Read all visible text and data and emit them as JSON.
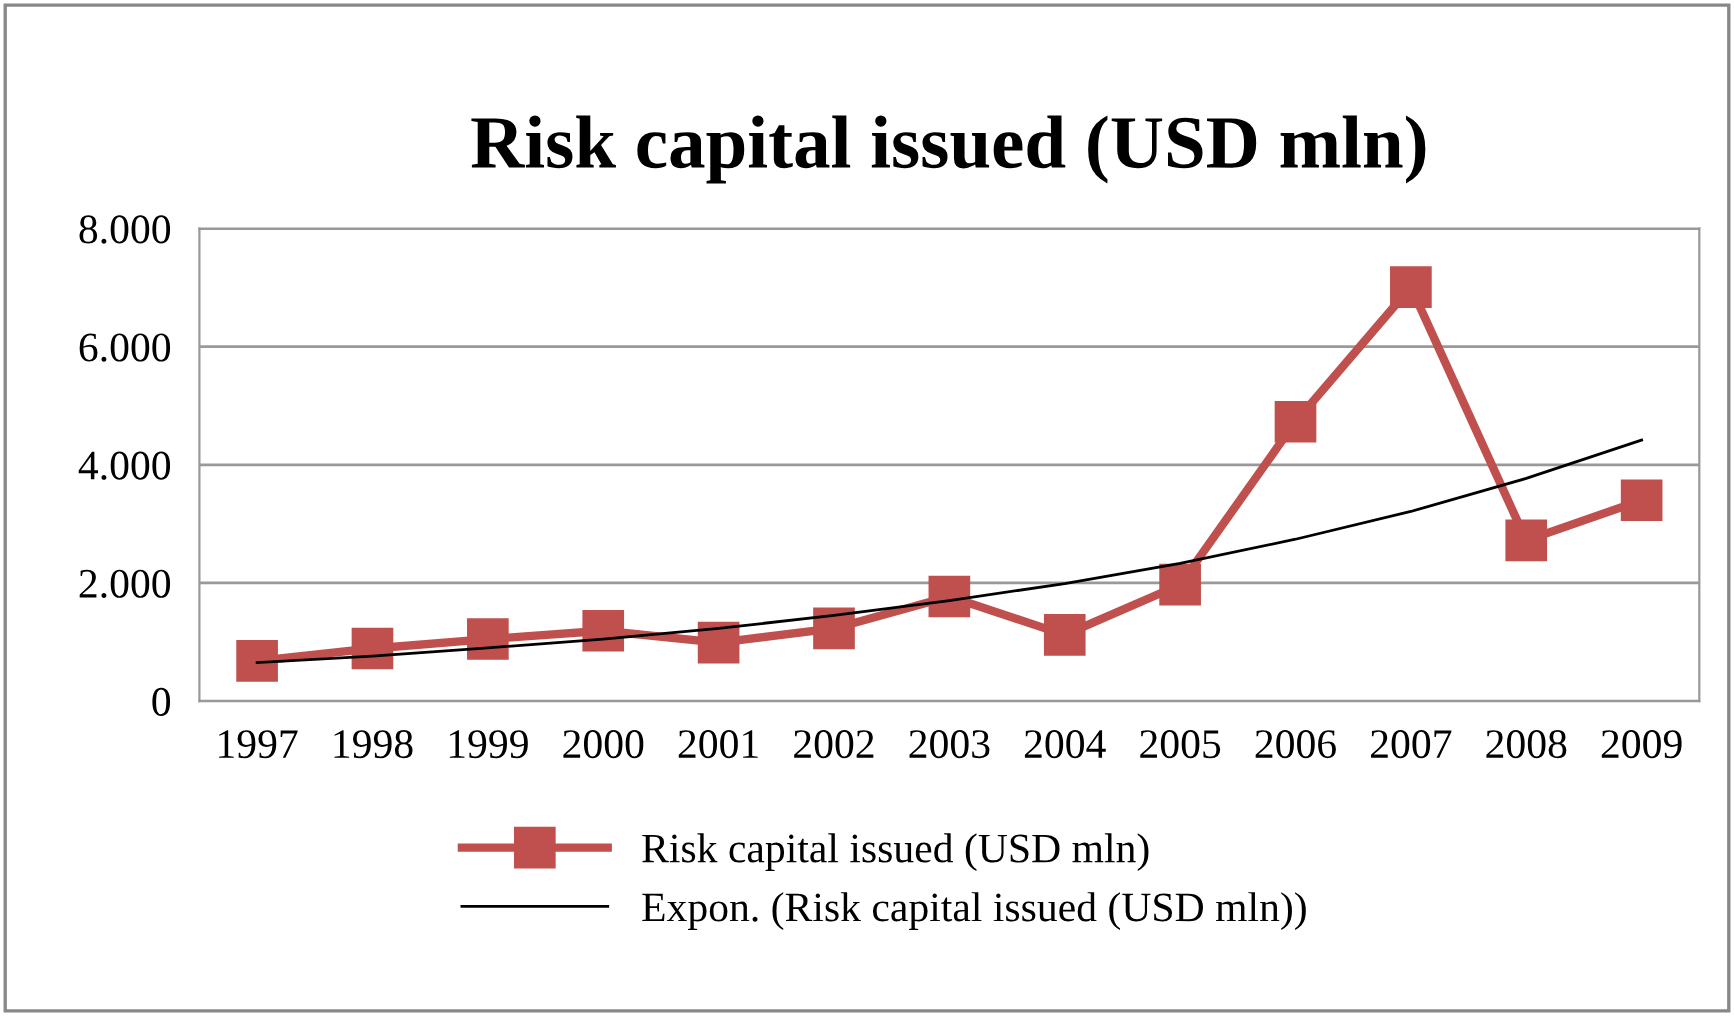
{
  "chart_data": {
    "type": "line",
    "title": "Risk capital issued (USD mln)",
    "categories": [
      "1997",
      "1998",
      "1999",
      "2000",
      "2001",
      "2002",
      "2003",
      "2004",
      "2005",
      "2006",
      "2007",
      "2008",
      "2009"
    ],
    "series": [
      {
        "name": "Risk capital issued (USD mln)",
        "color": "#c0504d",
        "marker": "square",
        "values": [
          680,
          890,
          1050,
          1190,
          990,
          1230,
          1770,
          1120,
          1970,
          4730,
          7010,
          2720,
          3400
        ]
      },
      {
        "name": "Expon. (Risk capital issued (USD mln))",
        "color": "#000000",
        "marker": "none",
        "values": [
          650,
          760,
          900,
          1050,
          1230,
          1450,
          1700,
          1990,
          2330,
          2740,
          3210,
          3770,
          4420
        ]
      }
    ],
    "ylim": [
      0,
      8000
    ],
    "yticks": [
      {
        "value": 0,
        "label": "0"
      },
      {
        "value": 2000,
        "label": "2.000"
      },
      {
        "value": 4000,
        "label": "4.000"
      },
      {
        "value": 6000,
        "label": "6.000"
      },
      {
        "value": 8000,
        "label": "8.000"
      }
    ],
    "grid": "y",
    "legend": "bottom"
  }
}
